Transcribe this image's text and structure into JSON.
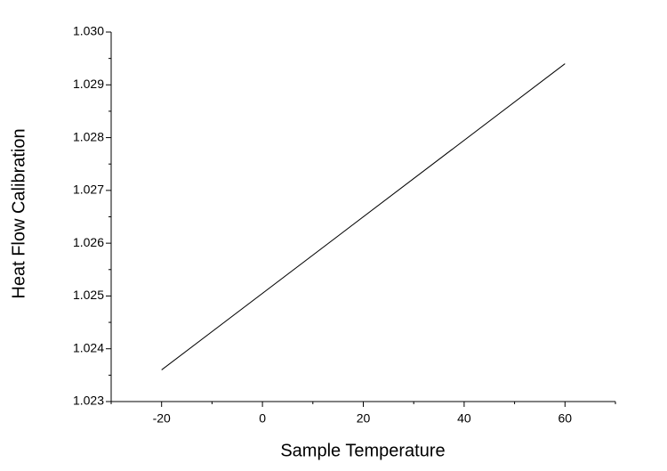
{
  "chart_data": {
    "type": "line",
    "x_label": "Sample Temperature",
    "y_label": "Heat Flow Calibration",
    "x": [
      -20,
      60
    ],
    "series": [
      {
        "color": "#000000",
        "values": [
          1.0236,
          1.0294
        ]
      }
    ],
    "xlim": [
      -30,
      70
    ],
    "xticks": [
      -20,
      0,
      20,
      40,
      60
    ],
    "ylim": [
      1.023,
      1.03
    ],
    "yticks": [
      {
        "value": 1.023,
        "label": "1.023"
      },
      {
        "value": 1.024,
        "label": "1.024"
      },
      {
        "value": 1.025,
        "label": "1.025"
      },
      {
        "value": 1.026,
        "label": "1.026"
      },
      {
        "value": 1.027,
        "label": "1.027"
      },
      {
        "value": 1.028,
        "label": "1.028"
      },
      {
        "value": 1.029,
        "label": "1.029"
      },
      {
        "value": 1.03,
        "label": "1.030"
      }
    ],
    "grid": false
  }
}
